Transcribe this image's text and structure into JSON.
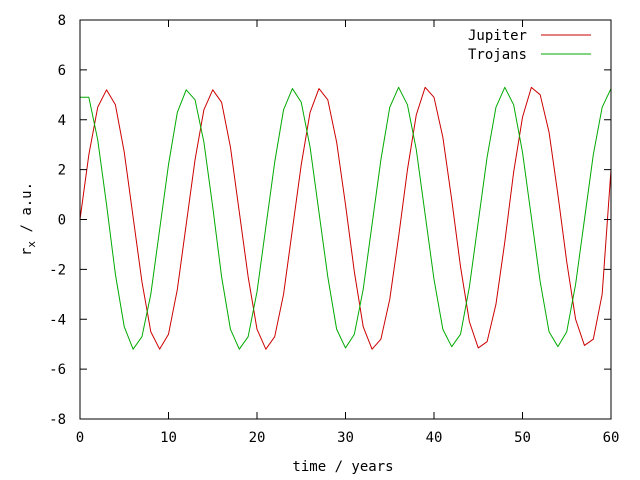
{
  "chart_data": {
    "type": "line",
    "title": "",
    "xlabel": "time / years",
    "ylabel_main": "r",
    "ylabel_sub": "x",
    "ylabel_rest": " / a.u.",
    "xlim": [
      0,
      60
    ],
    "ylim": [
      -8,
      8
    ],
    "xticks": [
      0,
      10,
      20,
      30,
      40,
      50,
      60
    ],
    "yticks": [
      -8,
      -6,
      -4,
      -2,
      0,
      2,
      4,
      6,
      8
    ],
    "grid": false,
    "legend_position": "top-right",
    "series": [
      {
        "name": "Jupiter",
        "color": "#cc0000",
        "x": [
          0,
          1,
          2,
          3,
          4,
          5,
          6,
          7,
          8,
          9,
          10,
          11,
          12,
          13,
          14,
          15,
          16,
          17,
          18,
          19,
          20,
          21,
          22,
          23,
          24,
          25,
          26,
          27,
          28,
          29,
          30,
          31,
          32,
          33,
          34,
          35,
          36,
          37,
          38,
          39,
          40,
          41,
          42,
          43,
          44,
          45,
          46,
          47,
          48,
          49,
          50,
          51,
          52,
          53,
          54,
          55,
          56,
          57,
          58,
          59,
          60
        ],
        "values": [
          0.0,
          2.6,
          4.5,
          5.2,
          4.6,
          2.7,
          0.1,
          -2.5,
          -4.5,
          -5.2,
          -4.6,
          -2.8,
          -0.2,
          2.4,
          4.4,
          5.2,
          4.7,
          2.9,
          0.3,
          -2.3,
          -4.4,
          -5.2,
          -4.7,
          -3.0,
          -0.4,
          2.2,
          4.3,
          5.25,
          4.8,
          3.1,
          0.6,
          -2.1,
          -4.3,
          -5.2,
          -4.8,
          -3.2,
          -0.7,
          2.0,
          4.2,
          5.3,
          4.9,
          3.3,
          0.8,
          -1.9,
          -4.1,
          -5.15,
          -4.9,
          -3.4,
          -0.9,
          1.9,
          4.1,
          5.3,
          5.0,
          3.5,
          1.0,
          -1.7,
          -4.0,
          -5.05,
          -4.8,
          -3.0,
          2.0
        ]
      },
      {
        "name": "Trojans",
        "color": "#00aa00",
        "x": [
          0,
          1,
          2,
          3,
          4,
          5,
          6,
          7,
          8,
          9,
          10,
          11,
          12,
          13,
          14,
          15,
          16,
          17,
          18,
          19,
          20,
          21,
          22,
          23,
          24,
          25,
          26,
          27,
          28,
          29,
          30,
          31,
          32,
          33,
          34,
          35,
          36,
          37,
          38,
          39,
          40,
          41,
          42,
          43,
          44,
          45,
          46,
          47,
          48,
          49,
          50,
          51,
          52,
          53,
          54,
          55,
          56,
          57,
          58,
          59,
          60
        ],
        "values": [
          4.9,
          4.9,
          3.2,
          0.6,
          -2.2,
          -4.3,
          -5.2,
          -4.7,
          -3.0,
          -0.4,
          2.2,
          4.3,
          5.2,
          4.8,
          3.1,
          0.5,
          -2.3,
          -4.4,
          -5.2,
          -4.7,
          -2.9,
          -0.3,
          2.3,
          4.4,
          5.25,
          4.7,
          2.9,
          0.3,
          -2.3,
          -4.4,
          -5.15,
          -4.6,
          -2.8,
          -0.2,
          2.4,
          4.5,
          5.3,
          4.6,
          2.8,
          0.2,
          -2.4,
          -4.4,
          -5.1,
          -4.6,
          -2.7,
          -0.1,
          2.5,
          4.5,
          5.3,
          4.6,
          2.7,
          0.1,
          -2.5,
          -4.5,
          -5.1,
          -4.5,
          -2.6,
          0.0,
          2.6,
          4.5,
          5.25
        ]
      }
    ]
  }
}
